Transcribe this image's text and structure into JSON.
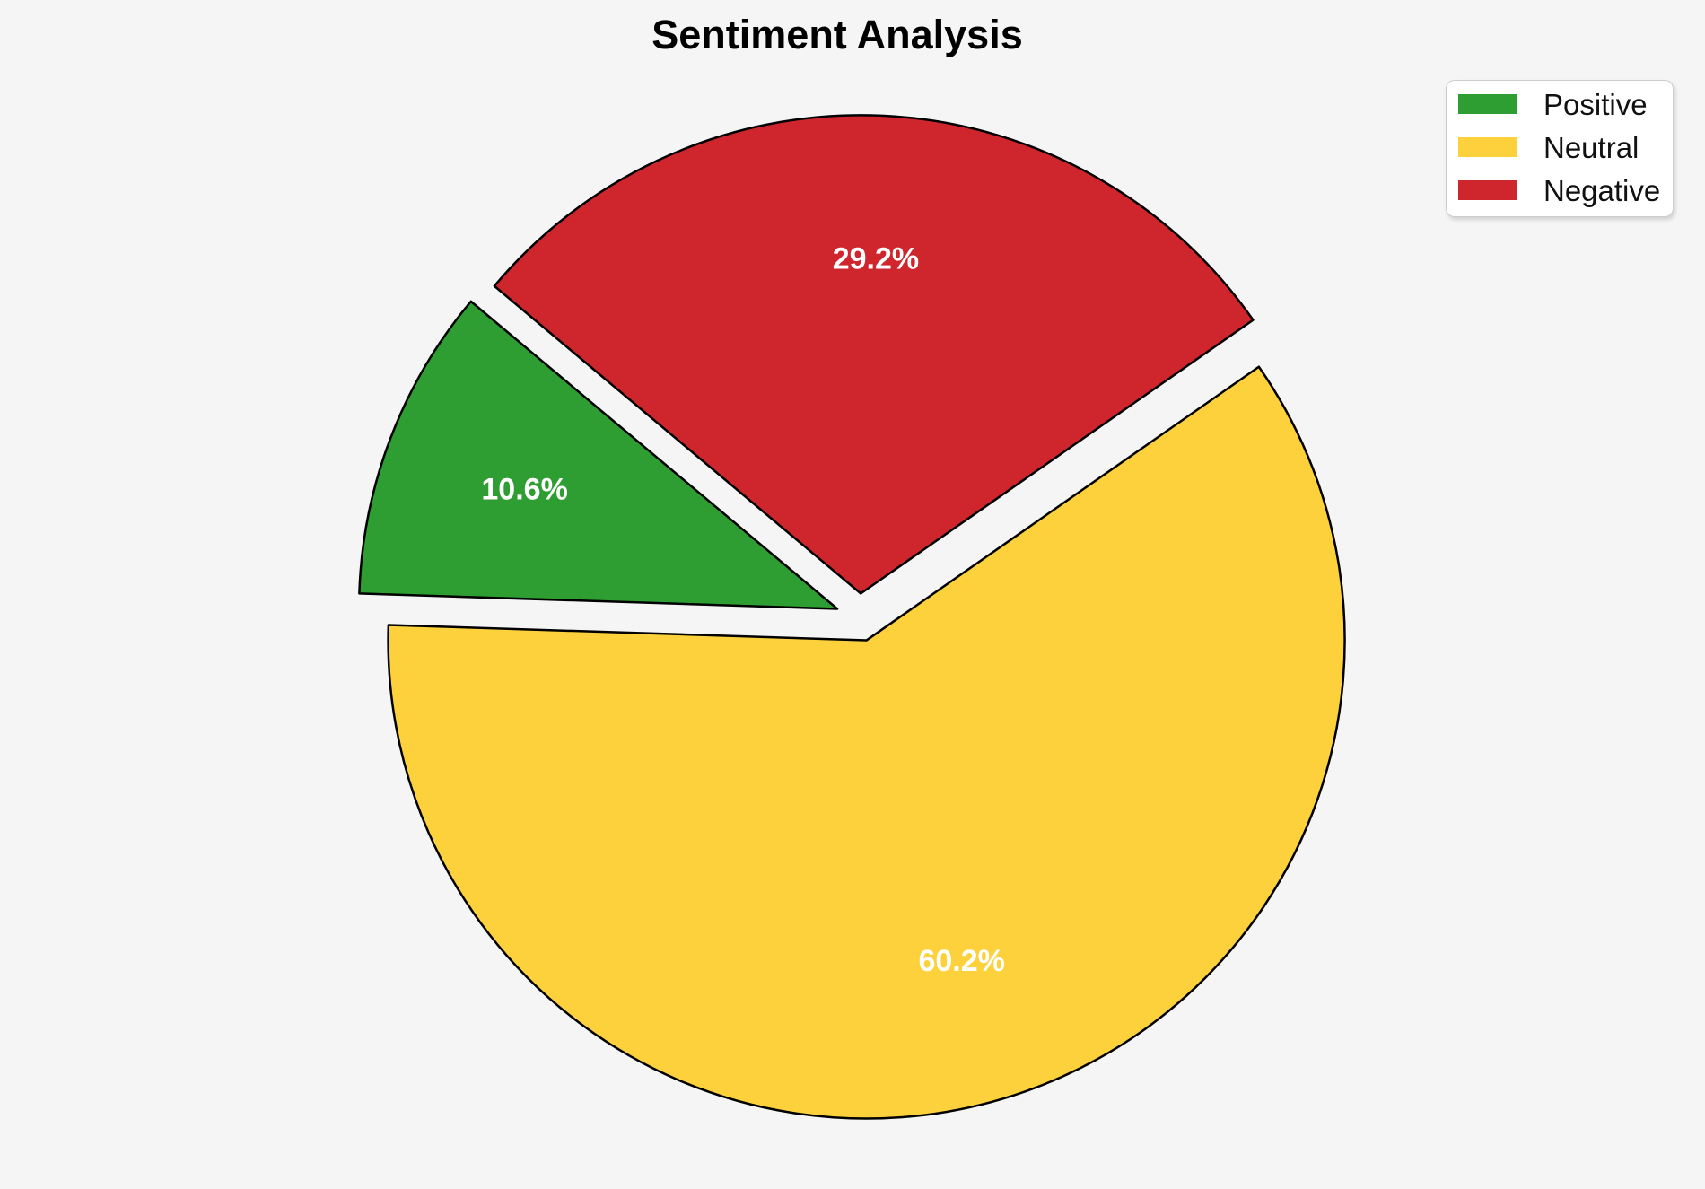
{
  "figure": {
    "background": "#f5f5f5"
  },
  "chart_data": {
    "type": "pie",
    "title": "Sentiment Analysis",
    "labels": [
      "Positive",
      "Neutral",
      "Negative"
    ],
    "values": [
      10.6,
      60.2,
      29.2
    ],
    "slice_labels": [
      "10.6%",
      "60.2%",
      "29.2%"
    ],
    "colors": [
      "#2f9e32",
      "#fcd13b",
      "#ce262c"
    ],
    "edge_color": "#000000",
    "label_color": "#ffffff",
    "start_angle_deg": 140,
    "counterclockwise": true,
    "explode": [
      0.05,
      0.05,
      0.05
    ],
    "pct_distance": 0.7,
    "legend": {
      "position": "upper-right",
      "entries": [
        "Positive",
        "Neutral",
        "Negative"
      ]
    }
  }
}
